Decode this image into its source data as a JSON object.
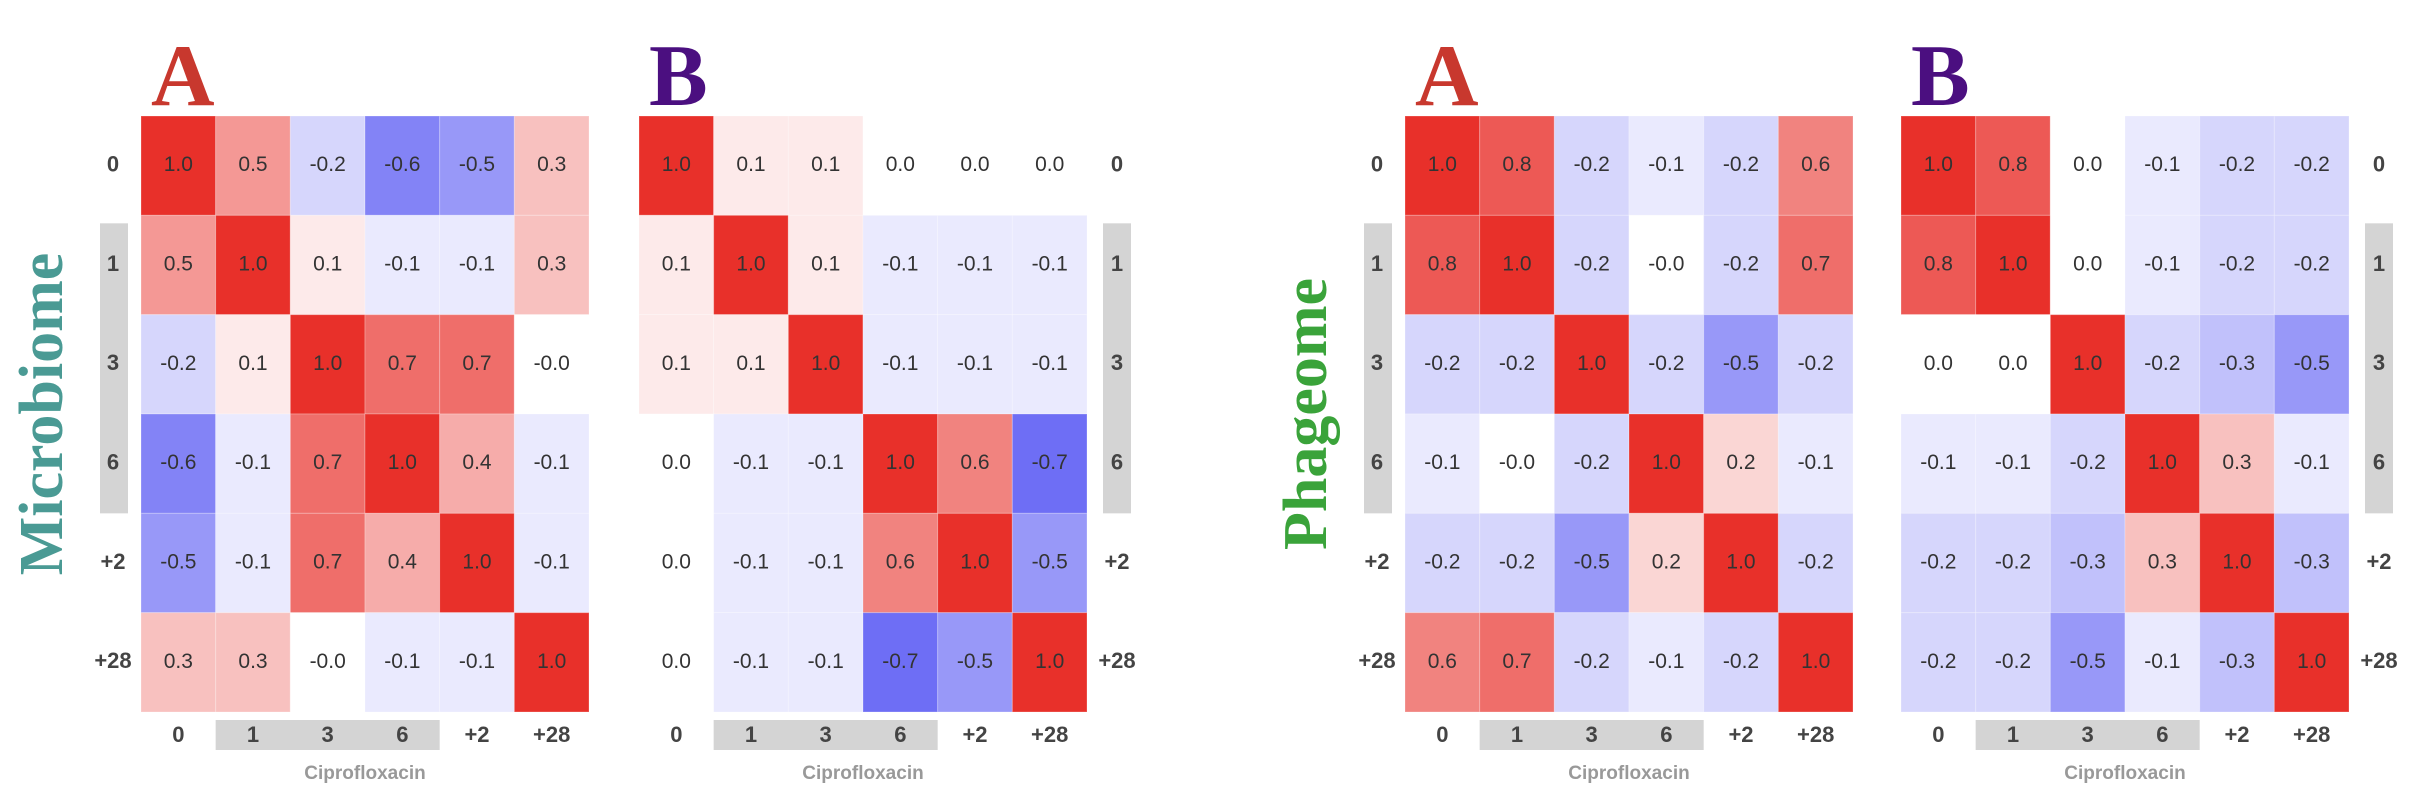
{
  "chart_data": [
    {
      "type": "heatmap",
      "title": "A",
      "title_color": "#c8382e",
      "ylabel": "Microbiome",
      "ylabel_color": "#4a9a94",
      "xlabel": "Ciprofloxacin",
      "ytick_side": "left",
      "categories": [
        "0",
        "1",
        "3",
        "6",
        "+2",
        "+28"
      ],
      "vlim": [
        -1,
        1
      ],
      "colormap": {
        "low": "#3030f0",
        "mid": "#ffffff",
        "high": "#e8302a"
      },
      "values": [
        [
          1.0,
          0.5,
          -0.2,
          -0.6,
          -0.5,
          0.3
        ],
        [
          0.5,
          1.0,
          0.1,
          -0.1,
          -0.1,
          0.3
        ],
        [
          -0.2,
          0.1,
          1.0,
          0.7,
          0.7,
          -0.0
        ],
        [
          -0.6,
          -0.1,
          0.7,
          1.0,
          0.4,
          -0.1
        ],
        [
          -0.5,
          -0.1,
          0.7,
          0.4,
          1.0,
          -0.1
        ],
        [
          0.3,
          0.3,
          -0.0,
          -0.1,
          -0.1,
          1.0
        ]
      ],
      "value_labels": [
        [
          "1.0",
          "0.5",
          "-0.2",
          "-0.6",
          "-0.5",
          "0.3"
        ],
        [
          "0.5",
          "1.0",
          "0.1",
          "-0.1",
          "-0.1",
          "0.3"
        ],
        [
          "-0.2",
          "0.1",
          "1.0",
          "0.7",
          "0.7",
          "-0.0"
        ],
        [
          "-0.6",
          "-0.1",
          "0.7",
          "1.0",
          "0.4",
          "-0.1"
        ],
        [
          "-0.5",
          "-0.1",
          "0.7",
          "0.4",
          "1.0",
          "-0.1"
        ],
        [
          "0.3",
          "0.3",
          "-0.0",
          "-0.1",
          "-0.1",
          "1.0"
        ]
      ]
    },
    {
      "type": "heatmap",
      "title": "B",
      "title_color": "#4b0f80",
      "xlabel": "Ciprofloxacin",
      "ytick_side": "right",
      "categories": [
        "0",
        "1",
        "3",
        "6",
        "+2",
        "+28"
      ],
      "vlim": [
        -1,
        1
      ],
      "colormap": {
        "low": "#3030f0",
        "mid": "#ffffff",
        "high": "#e8302a"
      },
      "values": [
        [
          1.0,
          0.1,
          0.1,
          0.0,
          0.0,
          0.0
        ],
        [
          0.1,
          1.0,
          0.1,
          -0.1,
          -0.1,
          -0.1
        ],
        [
          0.1,
          0.1,
          1.0,
          -0.1,
          -0.1,
          -0.1
        ],
        [
          0.0,
          -0.1,
          -0.1,
          1.0,
          0.6,
          -0.7
        ],
        [
          0.0,
          -0.1,
          -0.1,
          0.6,
          1.0,
          -0.5
        ],
        [
          0.0,
          -0.1,
          -0.1,
          -0.7,
          -0.5,
          1.0
        ]
      ],
      "value_labels": [
        [
          "1.0",
          "0.1",
          "0.1",
          "0.0",
          "0.0",
          "0.0"
        ],
        [
          "0.1",
          "1.0",
          "0.1",
          "-0.1",
          "-0.1",
          "-0.1"
        ],
        [
          "0.1",
          "0.1",
          "1.0",
          "-0.1",
          "-0.1",
          "-0.1"
        ],
        [
          "0.0",
          "-0.1",
          "-0.1",
          "1.0",
          "0.6",
          "-0.7"
        ],
        [
          "0.0",
          "-0.1",
          "-0.1",
          "0.6",
          "1.0",
          "-0.5"
        ],
        [
          "0.0",
          "-0.1",
          "-0.1",
          "-0.7",
          "-0.5",
          "1.0"
        ]
      ]
    },
    {
      "type": "heatmap",
      "title": "A",
      "title_color": "#c8382e",
      "ylabel": "Phageome",
      "ylabel_color": "#3aa33a",
      "xlabel": "Ciprofloxacin",
      "ytick_side": "left",
      "categories": [
        "0",
        "1",
        "3",
        "6",
        "+2",
        "+28"
      ],
      "vlim": [
        -1,
        1
      ],
      "colormap": {
        "low": "#3030f0",
        "mid": "#ffffff",
        "high": "#e8302a"
      },
      "values": [
        [
          1.0,
          0.8,
          -0.2,
          -0.1,
          -0.2,
          0.6
        ],
        [
          0.8,
          1.0,
          -0.2,
          -0.0,
          -0.2,
          0.7
        ],
        [
          -0.2,
          -0.2,
          1.0,
          -0.2,
          -0.5,
          -0.2
        ],
        [
          -0.1,
          -0.0,
          -0.2,
          1.0,
          0.2,
          -0.1
        ],
        [
          -0.2,
          -0.2,
          -0.5,
          0.2,
          1.0,
          -0.2
        ],
        [
          0.6,
          0.7,
          -0.2,
          -0.1,
          -0.2,
          1.0
        ]
      ],
      "value_labels": [
        [
          "1.0",
          "0.8",
          "-0.2",
          "-0.1",
          "-0.2",
          "0.6"
        ],
        [
          "0.8",
          "1.0",
          "-0.2",
          "-0.0",
          "-0.2",
          "0.7"
        ],
        [
          "-0.2",
          "-0.2",
          "1.0",
          "-0.2",
          "-0.5",
          "-0.2"
        ],
        [
          "-0.1",
          "-0.0",
          "-0.2",
          "1.0",
          "0.2",
          "-0.1"
        ],
        [
          "-0.2",
          "-0.2",
          "-0.5",
          "0.2",
          "1.0",
          "-0.2"
        ],
        [
          "0.6",
          "0.7",
          "-0.2",
          "-0.1",
          "-0.2",
          "1.0"
        ]
      ]
    },
    {
      "type": "heatmap",
      "title": "B",
      "title_color": "#4b0f80",
      "xlabel": "Ciprofloxacin",
      "ytick_side": "right",
      "categories": [
        "0",
        "1",
        "3",
        "6",
        "+2",
        "+28"
      ],
      "vlim": [
        -1,
        1
      ],
      "colormap": {
        "low": "#3030f0",
        "mid": "#ffffff",
        "high": "#e8302a"
      },
      "values": [
        [
          1.0,
          0.8,
          0.0,
          -0.1,
          -0.2,
          -0.2
        ],
        [
          0.8,
          1.0,
          0.0,
          -0.1,
          -0.2,
          -0.2
        ],
        [
          0.0,
          0.0,
          1.0,
          -0.2,
          -0.3,
          -0.5
        ],
        [
          -0.1,
          -0.1,
          -0.2,
          1.0,
          0.3,
          -0.1
        ],
        [
          -0.2,
          -0.2,
          -0.3,
          0.3,
          1.0,
          -0.3
        ],
        [
          -0.2,
          -0.2,
          -0.5,
          -0.1,
          -0.3,
          1.0
        ]
      ],
      "value_labels": [
        [
          "1.0",
          "0.8",
          "0.0",
          "-0.1",
          "-0.2",
          "-0.2"
        ],
        [
          "0.8",
          "1.0",
          "0.0",
          "-0.1",
          "-0.2",
          "-0.2"
        ],
        [
          "0.0",
          "0.0",
          "1.0",
          "-0.2",
          "-0.3",
          "-0.5"
        ],
        [
          "-0.1",
          "-0.1",
          "-0.2",
          "1.0",
          "0.3",
          "-0.1"
        ],
        [
          "-0.2",
          "-0.2",
          "-0.3",
          "0.3",
          "1.0",
          "-0.3"
        ],
        [
          "-0.2",
          "-0.2",
          "-0.5",
          "-0.1",
          "-0.3",
          "1.0"
        ]
      ]
    }
  ]
}
